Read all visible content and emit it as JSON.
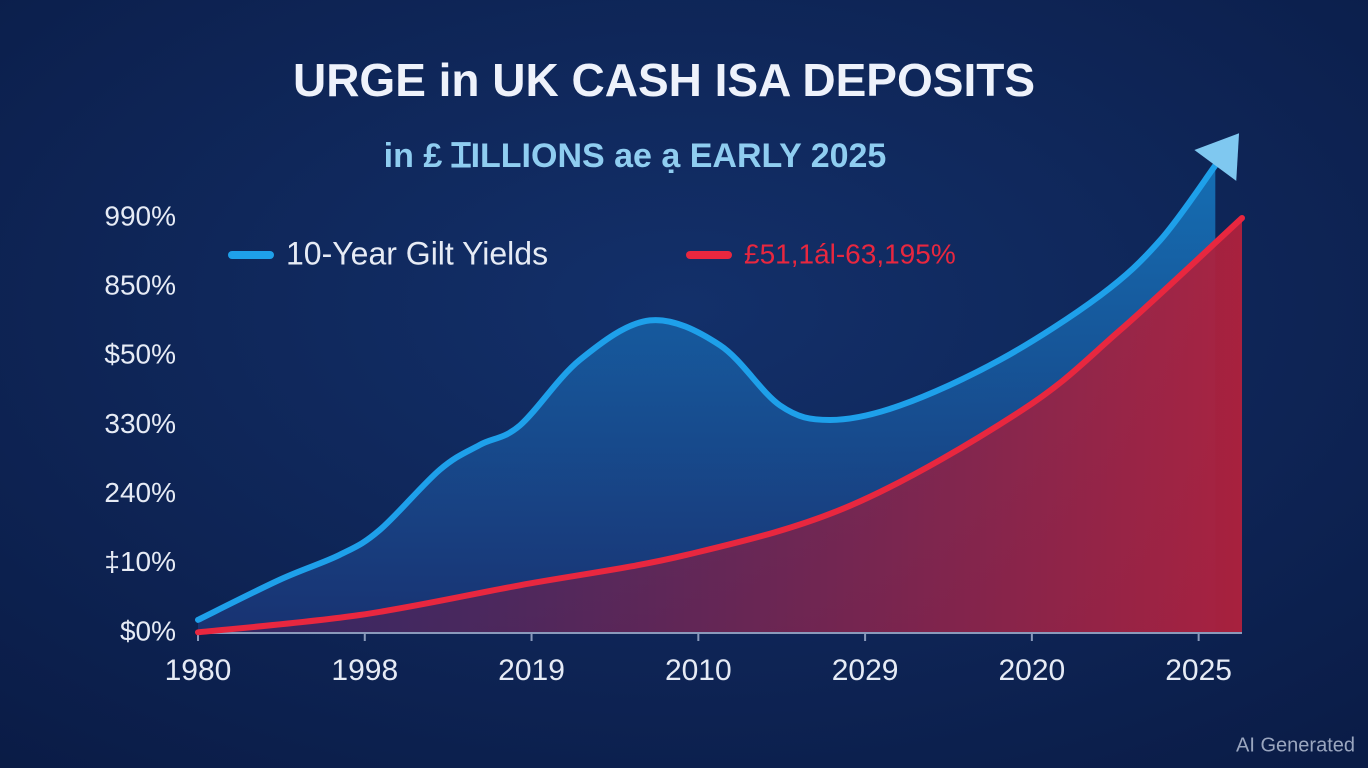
{
  "chart_data": {
    "type": "area",
    "title": "URGE in UK CASH ISA DEPOSITS",
    "subtitle": "in £ ꞮILLIONS ae ạ EARLY 2025",
    "watermark": "AI Generated",
    "xlim": [
      0,
      6.26
    ],
    "xticks": [
      {
        "value": 0,
        "label": "1980"
      },
      {
        "value": 1,
        "label": "1998"
      },
      {
        "value": 2,
        "label": "2019"
      },
      {
        "value": 3,
        "label": "2010"
      },
      {
        "value": 4,
        "label": "2029"
      },
      {
        "value": 5,
        "label": "2020"
      },
      {
        "value": 6,
        "label": "2025"
      }
    ],
    "ylim": [
      0,
      7.2
    ],
    "yticks": [
      {
        "value": 0,
        "label": "$0%"
      },
      {
        "value": 1,
        "label": "‡10%"
      },
      {
        "value": 2,
        "label": "240%"
      },
      {
        "value": 3,
        "label": "330%"
      },
      {
        "value": 4,
        "label": "$50%"
      },
      {
        "value": 5,
        "label": "850%"
      },
      {
        "value": 6,
        "label": "990%"
      }
    ],
    "legend": "top-left",
    "series": [
      {
        "name": "10-Year Gilt Yields",
        "color": "#1ea0ea",
        "x": [
          0,
          0.49,
          0.85,
          1.09,
          1.45,
          1.69,
          1.93,
          2.29,
          2.71,
          3.13,
          3.49,
          3.79,
          4.21,
          4.81,
          5.41,
          5.77,
          6.1
        ],
        "values": [
          0.19,
          0.77,
          1.13,
          1.49,
          2.36,
          2.72,
          3.0,
          3.95,
          4.52,
          4.16,
          3.29,
          3.08,
          3.29,
          3.95,
          4.88,
          5.68,
          6.76
        ]
      },
      {
        "name": "£51,1ál-63,195%",
        "color": "#e8273f",
        "x": [
          0,
          0.97,
          1.93,
          2.93,
          3.92,
          4.94,
          5.53,
          6.26
        ],
        "values": [
          0.01,
          0.26,
          0.69,
          1.13,
          1.85,
          3.22,
          4.38,
          6.0
        ]
      }
    ]
  }
}
